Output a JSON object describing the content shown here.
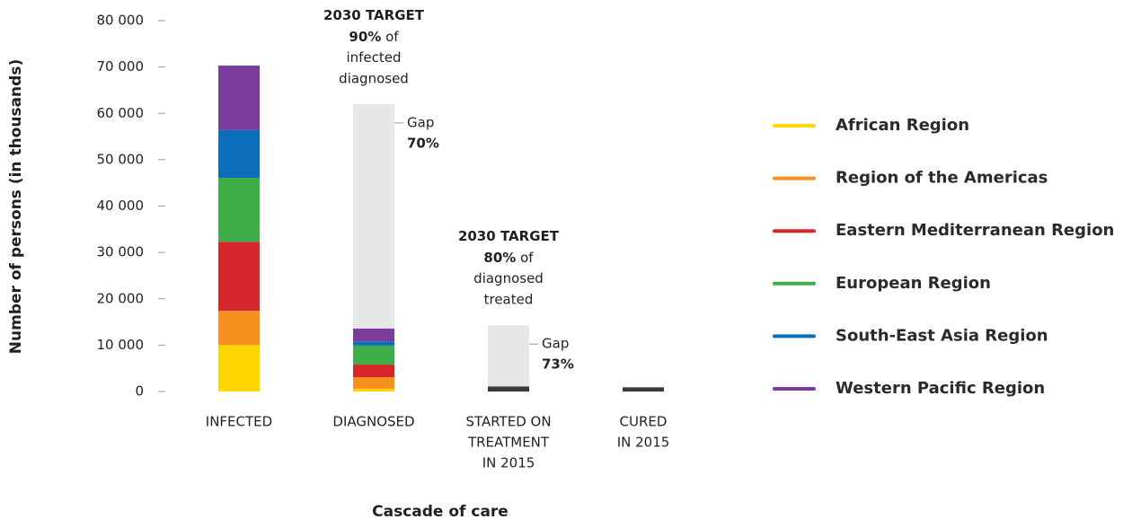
{
  "chart_data": {
    "type": "stacked_bar",
    "ylabel": "Number of persons (in thousands)",
    "xlabel": "Cascade of care",
    "categories": [
      [
        "INFECTED"
      ],
      [
        "DIAGNOSED"
      ],
      [
        "STARTED ON",
        "TREATMENT",
        "IN 2015"
      ],
      [
        "CURED",
        "IN 2015"
      ]
    ],
    "ylim": [
      0,
      80000
    ],
    "yticks": [
      0,
      {
        "value": 10000,
        "label": "10 000"
      },
      {
        "value": 20000,
        "label": "20 000"
      },
      {
        "value": 30000,
        "label": "30 000"
      },
      {
        "value": 40000,
        "label": "40 000"
      },
      {
        "value": 50000,
        "label": "50 000"
      },
      {
        "value": 60000,
        "label": "60 000"
      },
      {
        "value": 70000,
        "label": "70 000"
      },
      {
        "value": 80000,
        "label": "80 000"
      }
    ],
    "series": [
      {
        "name": "African Region",
        "color": "#ffd600",
        "values": [
          10000,
          600,
          null,
          null
        ]
      },
      {
        "name": "Region of the Americas",
        "color": "#f7901e",
        "values": [
          7400,
          2500,
          null,
          null
        ]
      },
      {
        "name": "Eastern Mediterranean Region",
        "color": "#d7262c",
        "values": [
          14900,
          2700,
          null,
          null
        ]
      },
      {
        "name": "European Region",
        "color": "#3fae49",
        "values": [
          13800,
          4100,
          null,
          null
        ]
      },
      {
        "name": "South-East Asia Region",
        "color": "#0a6ebd",
        "values": [
          10300,
          900,
          null,
          null
        ]
      },
      {
        "name": "Western Pacific Region",
        "color": "#7b3b9a",
        "values": [
          13900,
          2800,
          null,
          null
        ]
      }
    ],
    "totals": {
      "color": "#3a3a3a",
      "values": [
        null,
        null,
        1100,
        900
      ]
    },
    "gap": {
      "label": "Gap",
      "color": "#e6e7e8",
      "values": [
        null,
        48400,
        13200,
        null
      ],
      "percent_labels": [
        null,
        "70%",
        "73%",
        null
      ]
    },
    "targets": [
      {
        "category": 1,
        "heading": "2030 TARGET",
        "percent": "90%",
        "rest": [
          "of",
          "infected",
          "diagnosed"
        ]
      },
      {
        "category": 2,
        "heading": "2030 TARGET",
        "percent": "80%",
        "rest": [
          "of",
          "diagnosed",
          "treated"
        ]
      }
    ]
  }
}
